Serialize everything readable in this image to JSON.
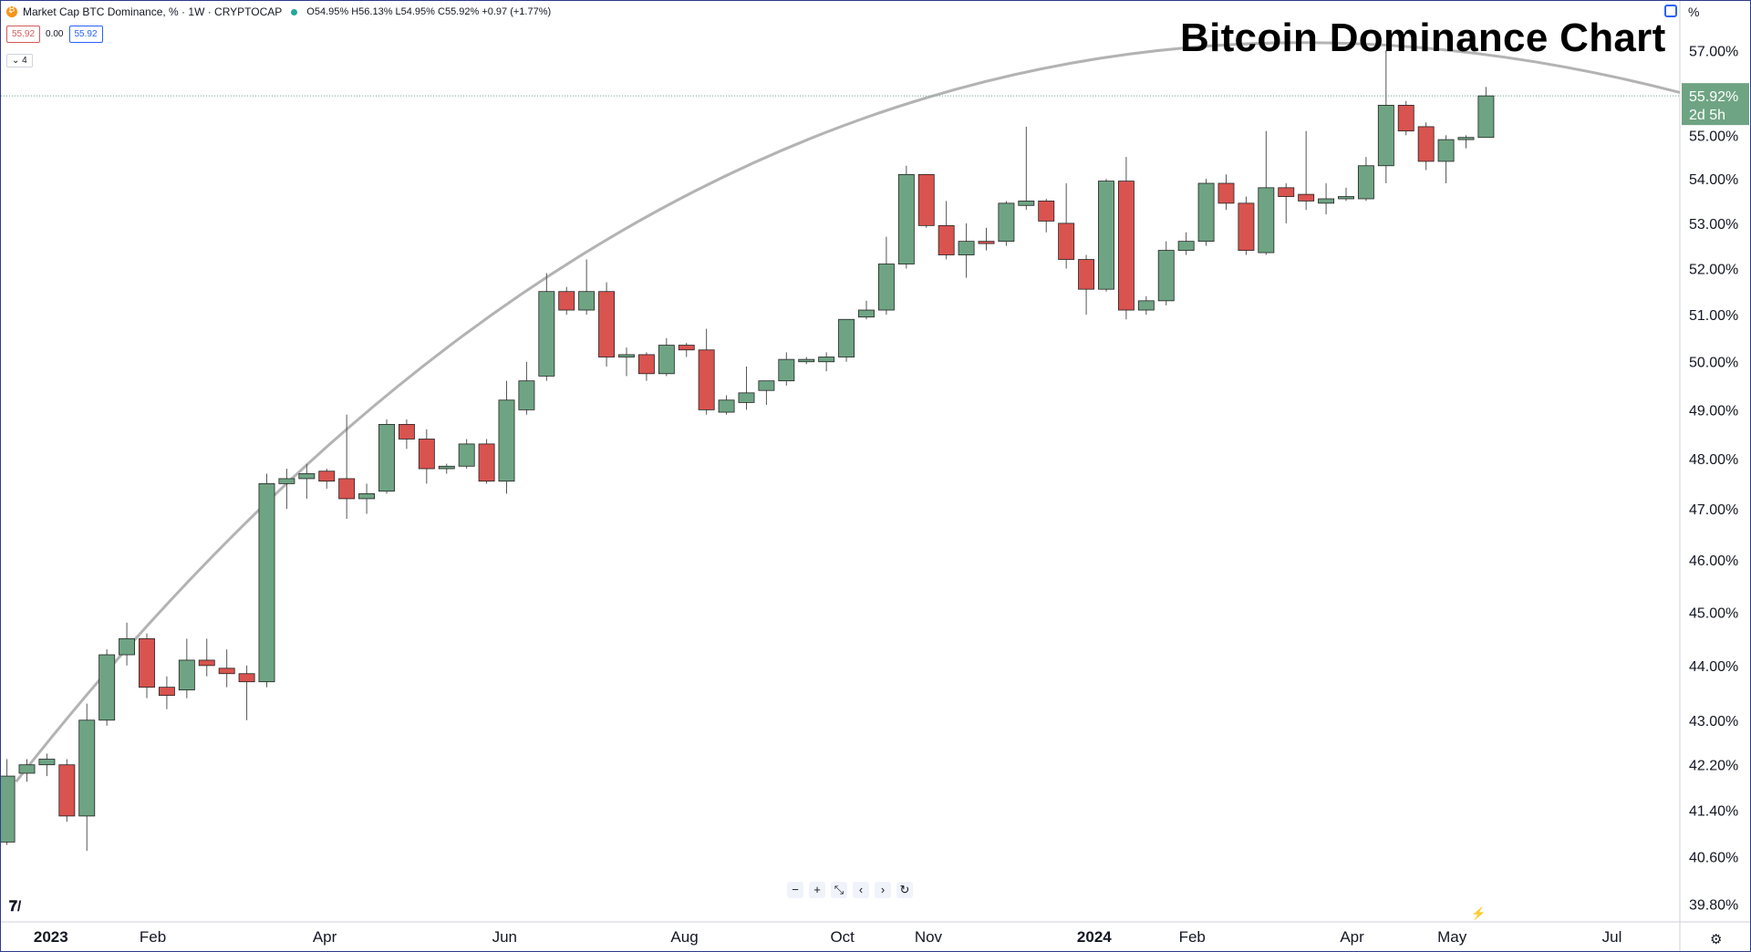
{
  "header": {
    "symbol_text": "Market Cap BTC Dominance, % · 1W · CRYPTOCAP",
    "ohlc_text": "O54.95% H56.13% L54.95% C55.92% +0.97 (+1.77%)",
    "sell_box": "55.92",
    "spread": "0.00",
    "buy_box": "55.92",
    "indicator_count": "4"
  },
  "title": "Bitcoin Dominance Chart",
  "toolbar": {
    "percent_label": "%",
    "nav_buttons": [
      "−",
      "+",
      "⤡",
      "‹",
      "›",
      "↻"
    ]
  },
  "price_tag": {
    "value": "55.92%",
    "countdown": "2d 5h"
  },
  "chart_data": {
    "type": "candlestick",
    "interval": "1W",
    "scale": "log",
    "ylim": [
      39.5,
      58.2
    ],
    "y_ticks": [
      "57.00%",
      "55.00%",
      "54.00%",
      "53.00%",
      "52.00%",
      "51.00%",
      "50.00%",
      "49.00%",
      "48.00%",
      "47.00%",
      "46.00%",
      "45.00%",
      "44.00%",
      "43.00%",
      "42.20%",
      "41.40%",
      "40.60%",
      "39.80%"
    ],
    "x_labels": [
      {
        "label": "2023",
        "index": 2.2,
        "bold": true
      },
      {
        "label": "Feb",
        "index": 7.3
      },
      {
        "label": "Apr",
        "index": 15.9
      },
      {
        "label": "Jun",
        "index": 24.9
      },
      {
        "label": "Aug",
        "index": 33.9
      },
      {
        "label": "Oct",
        "index": 41.8
      },
      {
        "label": "Nov",
        "index": 46.1
      },
      {
        "label": "2024",
        "index": 54.4,
        "bold": true
      },
      {
        "label": "Feb",
        "index": 59.3
      },
      {
        "label": "Apr",
        "index": 67.3
      },
      {
        "label": "May",
        "index": 72.3
      },
      {
        "label": "Jul",
        "index": 80.3
      }
    ],
    "index_range": [
      -0.3,
      83.7
    ],
    "last_price": 55.92,
    "up_color": "#6ea483",
    "down_color": "#d9534f",
    "candles": [
      {
        "o": 40.85,
        "h": 42.3,
        "l": 40.8,
        "c": 42.0
      },
      {
        "o": 42.05,
        "h": 42.3,
        "l": 41.9,
        "c": 42.2
      },
      {
        "o": 42.2,
        "h": 42.4,
        "l": 42.0,
        "c": 42.3
      },
      {
        "o": 42.2,
        "h": 42.3,
        "l": 41.2,
        "c": 41.3
      },
      {
        "o": 41.3,
        "h": 43.3,
        "l": 40.7,
        "c": 43.0
      },
      {
        "o": 43.0,
        "h": 44.3,
        "l": 42.9,
        "c": 44.2
      },
      {
        "o": 44.2,
        "h": 44.8,
        "l": 44.0,
        "c": 44.5
      },
      {
        "o": 44.5,
        "h": 44.6,
        "l": 43.4,
        "c": 43.6
      },
      {
        "o": 43.6,
        "h": 43.8,
        "l": 43.2,
        "c": 43.45
      },
      {
        "o": 43.55,
        "h": 44.5,
        "l": 43.4,
        "c": 44.1
      },
      {
        "o": 44.1,
        "h": 44.5,
        "l": 43.8,
        "c": 44.0
      },
      {
        "o": 43.95,
        "h": 44.3,
        "l": 43.6,
        "c": 43.85
      },
      {
        "o": 43.85,
        "h": 44.0,
        "l": 43.0,
        "c": 43.7
      },
      {
        "o": 43.7,
        "h": 47.7,
        "l": 43.6,
        "c": 47.5
      },
      {
        "o": 47.5,
        "h": 47.8,
        "l": 47.0,
        "c": 47.6
      },
      {
        "o": 47.6,
        "h": 47.9,
        "l": 47.2,
        "c": 47.7
      },
      {
        "o": 47.75,
        "h": 47.8,
        "l": 47.4,
        "c": 47.55
      },
      {
        "o": 47.6,
        "h": 48.9,
        "l": 46.8,
        "c": 47.2
      },
      {
        "o": 47.2,
        "h": 47.5,
        "l": 46.9,
        "c": 47.3
      },
      {
        "o": 47.35,
        "h": 48.8,
        "l": 47.3,
        "c": 48.7
      },
      {
        "o": 48.7,
        "h": 48.8,
        "l": 48.2,
        "c": 48.4
      },
      {
        "o": 48.4,
        "h": 48.6,
        "l": 47.5,
        "c": 47.8
      },
      {
        "o": 47.8,
        "h": 47.9,
        "l": 47.7,
        "c": 47.85
      },
      {
        "o": 47.85,
        "h": 48.4,
        "l": 47.8,
        "c": 48.3
      },
      {
        "o": 48.3,
        "h": 48.4,
        "l": 47.5,
        "c": 47.55
      },
      {
        "o": 47.55,
        "h": 49.6,
        "l": 47.3,
        "c": 49.2
      },
      {
        "o": 49.0,
        "h": 50.0,
        "l": 48.9,
        "c": 49.6
      },
      {
        "o": 49.7,
        "h": 51.9,
        "l": 49.6,
        "c": 51.5
      },
      {
        "o": 51.5,
        "h": 51.6,
        "l": 51.0,
        "c": 51.1
      },
      {
        "o": 51.1,
        "h": 52.2,
        "l": 51.0,
        "c": 51.5
      },
      {
        "o": 51.5,
        "h": 51.7,
        "l": 49.9,
        "c": 50.1
      },
      {
        "o": 50.1,
        "h": 50.3,
        "l": 49.7,
        "c": 50.15
      },
      {
        "o": 50.15,
        "h": 50.2,
        "l": 49.6,
        "c": 49.75
      },
      {
        "o": 49.75,
        "h": 50.5,
        "l": 49.7,
        "c": 50.35
      },
      {
        "o": 50.35,
        "h": 50.4,
        "l": 50.1,
        "c": 50.25
      },
      {
        "o": 50.25,
        "h": 50.7,
        "l": 48.9,
        "c": 49.0
      },
      {
        "o": 48.95,
        "h": 49.3,
        "l": 48.9,
        "c": 49.2
      },
      {
        "o": 49.15,
        "h": 49.9,
        "l": 49.0,
        "c": 49.35
      },
      {
        "o": 49.4,
        "h": 49.6,
        "l": 49.1,
        "c": 49.6
      },
      {
        "o": 49.6,
        "h": 50.2,
        "l": 49.5,
        "c": 50.05
      },
      {
        "o": 50.0,
        "h": 50.1,
        "l": 49.95,
        "c": 50.05
      },
      {
        "o": 50.0,
        "h": 50.2,
        "l": 49.8,
        "c": 50.1
      },
      {
        "o": 50.1,
        "h": 50.9,
        "l": 50.0,
        "c": 50.9
      },
      {
        "o": 50.95,
        "h": 51.3,
        "l": 50.9,
        "c": 51.1
      },
      {
        "o": 51.1,
        "h": 52.7,
        "l": 51.0,
        "c": 52.1
      },
      {
        "o": 52.1,
        "h": 54.3,
        "l": 52.0,
        "c": 54.1
      },
      {
        "o": 54.1,
        "h": 54.1,
        "l": 52.9,
        "c": 52.95
      },
      {
        "o": 52.95,
        "h": 53.5,
        "l": 52.2,
        "c": 52.3
      },
      {
        "o": 52.3,
        "h": 53.0,
        "l": 51.8,
        "c": 52.6
      },
      {
        "o": 52.6,
        "h": 52.9,
        "l": 52.4,
        "c": 52.55
      },
      {
        "o": 52.6,
        "h": 53.5,
        "l": 52.5,
        "c": 53.45
      },
      {
        "o": 53.4,
        "h": 55.2,
        "l": 53.3,
        "c": 53.5
      },
      {
        "o": 53.5,
        "h": 53.55,
        "l": 52.8,
        "c": 53.05
      },
      {
        "o": 53.0,
        "h": 53.9,
        "l": 52.0,
        "c": 52.2
      },
      {
        "o": 52.2,
        "h": 52.3,
        "l": 51.0,
        "c": 51.55
      },
      {
        "o": 51.55,
        "h": 54.0,
        "l": 51.5,
        "c": 53.95
      },
      {
        "o": 53.95,
        "h": 54.5,
        "l": 50.9,
        "c": 51.1
      },
      {
        "o": 51.1,
        "h": 51.4,
        "l": 51.0,
        "c": 51.3
      },
      {
        "o": 51.3,
        "h": 52.6,
        "l": 51.2,
        "c": 52.4
      },
      {
        "o": 52.4,
        "h": 52.8,
        "l": 52.3,
        "c": 52.6
      },
      {
        "o": 52.6,
        "h": 54.0,
        "l": 52.5,
        "c": 53.9
      },
      {
        "o": 53.9,
        "h": 54.1,
        "l": 53.3,
        "c": 53.45
      },
      {
        "o": 53.45,
        "h": 53.6,
        "l": 52.3,
        "c": 52.4
      },
      {
        "o": 52.35,
        "h": 55.1,
        "l": 52.3,
        "c": 53.8
      },
      {
        "o": 53.8,
        "h": 53.9,
        "l": 53.0,
        "c": 53.6
      },
      {
        "o": 53.65,
        "h": 55.1,
        "l": 53.3,
        "c": 53.5
      },
      {
        "o": 53.45,
        "h": 53.9,
        "l": 53.2,
        "c": 53.55
      },
      {
        "o": 53.55,
        "h": 53.8,
        "l": 53.5,
        "c": 53.6
      },
      {
        "o": 53.55,
        "h": 54.5,
        "l": 53.5,
        "c": 54.3
      },
      {
        "o": 54.3,
        "h": 57.0,
        "l": 53.9,
        "c": 55.7
      },
      {
        "o": 55.7,
        "h": 55.8,
        "l": 55.0,
        "c": 55.1
      },
      {
        "o": 55.2,
        "h": 55.3,
        "l": 54.2,
        "c": 54.4
      },
      {
        "o": 54.4,
        "h": 55.0,
        "l": 53.9,
        "c": 54.9
      },
      {
        "o": 54.9,
        "h": 55.0,
        "l": 54.7,
        "c": 54.95
      },
      {
        "o": 54.95,
        "h": 56.13,
        "l": 54.95,
        "c": 55.92
      }
    ]
  }
}
